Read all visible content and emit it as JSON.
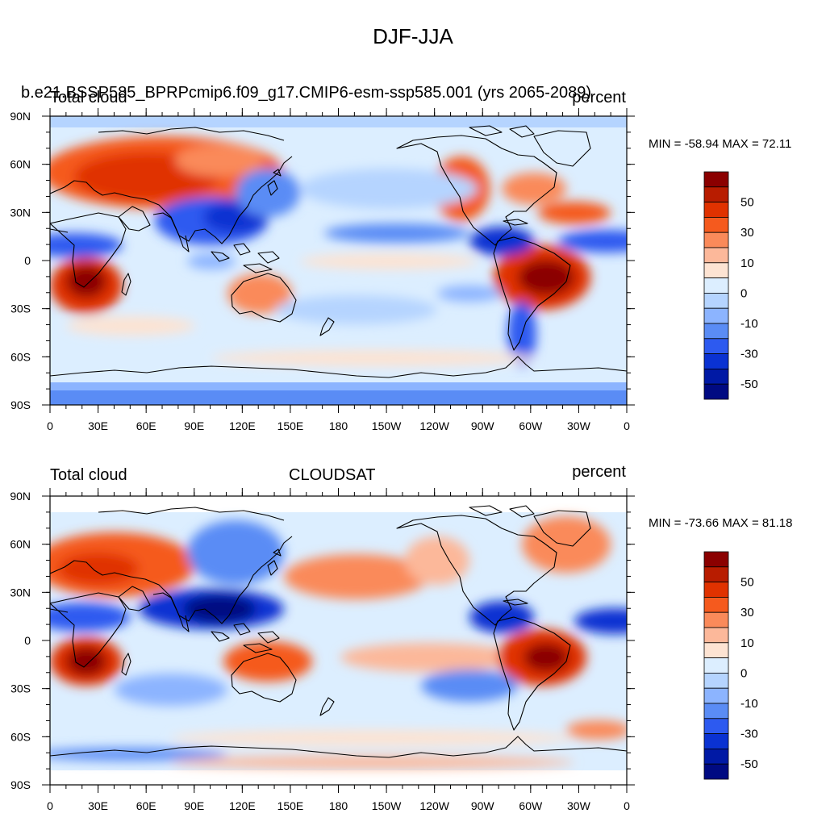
{
  "figure": {
    "title": "DJF-JJA"
  },
  "panels": [
    {
      "left_title": "Total cloud",
      "center_title": "b.e21.BSSP585_BPRPcmip6.f09_g17.CMIP6-esm-ssp585.001 (yrs 2065-2089)",
      "right_title": "percent",
      "stats": "MIN = -58.94 MAX =  72.11"
    },
    {
      "left_title": "Total cloud",
      "center_title": "CLOUDSAT",
      "right_title": "percent",
      "stats": "MIN = -73.66 MAX =  81.18"
    }
  ],
  "axes": {
    "lat_labels": [
      "90N",
      "60N",
      "30N",
      "0",
      "30S",
      "60S",
      "90S"
    ],
    "lon_labels": [
      "0",
      "30E",
      "60E",
      "90E",
      "120E",
      "150E",
      "180",
      "150W",
      "120W",
      "90W",
      "60W",
      "30W",
      "0"
    ]
  },
  "colorbar": {
    "labels": [
      "50",
      "30",
      "10",
      "0",
      "-10",
      "-30",
      "-50"
    ],
    "colors": [
      "#8b0000",
      "#b81c00",
      "#e03200",
      "#f55a1e",
      "#fa8a5a",
      "#fcb89a",
      "#fde3d2",
      "#dceeff",
      "#b5d4ff",
      "#8cb4ff",
      "#5a8cf5",
      "#2d5af0",
      "#0a32d2",
      "#0019a5",
      "#000a82"
    ]
  },
  "colors": {
    "strong_positive": "#b81c00",
    "weak_positive": "#fcb89a",
    "near_zero_positive": "#fde3d2",
    "near_zero_negative": "#dceeff",
    "weak_negative": "#8cb4ff",
    "strong_negative": "#0a32d2"
  }
}
